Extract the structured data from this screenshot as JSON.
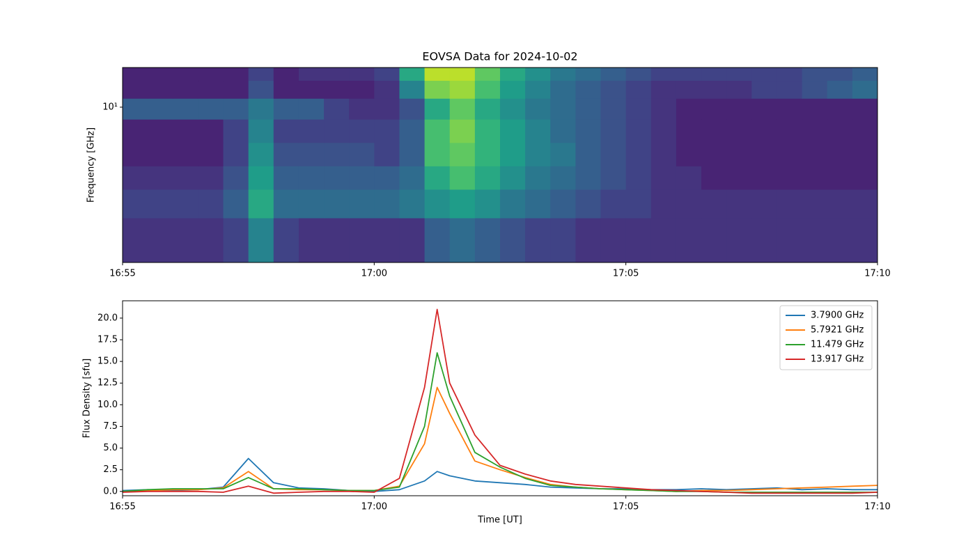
{
  "chart_data": [
    {
      "type": "heatmap",
      "title": "EOVSA Data for 2024-10-02",
      "ylabel": "Frequency [GHz]",
      "colormap": "viridis",
      "x": [
        "16:55:00",
        "16:55:30",
        "16:56:00",
        "16:56:30",
        "16:57:00",
        "16:57:30",
        "16:58:00",
        "16:58:30",
        "16:59:00",
        "16:59:30",
        "17:00:00",
        "17:00:30",
        "17:01:00",
        "17:01:30",
        "17:02:00",
        "17:02:30",
        "17:03:00",
        "17:03:30",
        "17:04:00",
        "17:04:30",
        "17:05:00",
        "17:05:30",
        "17:06:00",
        "17:06:30",
        "17:07:00",
        "17:07:30",
        "17:08:00",
        "17:08:30",
        "17:09:00",
        "17:09:30",
        "17:10:00"
      ],
      "frequencies": [
        1.5,
        2.5,
        3.5,
        5,
        7,
        10,
        13,
        17
      ],
      "z": [
        [
          0.15,
          0.15,
          0.15,
          0.15,
          0.2,
          0.45,
          0.2,
          0.15,
          0.15,
          0.15,
          0.15,
          0.15,
          0.3,
          0.35,
          0.3,
          0.25,
          0.2,
          0.2,
          0.15,
          0.15,
          0.15,
          0.15,
          0.15,
          0.15,
          0.15,
          0.15,
          0.15,
          0.15,
          0.15,
          0.15
        ],
        [
          0.2,
          0.2,
          0.2,
          0.2,
          0.3,
          0.6,
          0.35,
          0.35,
          0.35,
          0.35,
          0.35,
          0.4,
          0.5,
          0.55,
          0.5,
          0.4,
          0.35,
          0.3,
          0.25,
          0.2,
          0.2,
          0.15,
          0.15,
          0.15,
          0.15,
          0.15,
          0.15,
          0.15,
          0.15,
          0.15
        ],
        [
          0.15,
          0.15,
          0.15,
          0.15,
          0.25,
          0.55,
          0.3,
          0.3,
          0.3,
          0.3,
          0.3,
          0.35,
          0.6,
          0.7,
          0.6,
          0.5,
          0.4,
          0.35,
          0.3,
          0.25,
          0.2,
          0.15,
          0.15,
          0.1,
          0.1,
          0.1,
          0.1,
          0.1,
          0.1,
          0.1
        ],
        [
          0.1,
          0.1,
          0.1,
          0.1,
          0.2,
          0.5,
          0.25,
          0.25,
          0.25,
          0.25,
          0.2,
          0.3,
          0.7,
          0.75,
          0.65,
          0.55,
          0.45,
          0.4,
          0.3,
          0.25,
          0.2,
          0.15,
          0.1,
          0.1,
          0.1,
          0.1,
          0.1,
          0.1,
          0.1,
          0.1
        ],
        [
          0.1,
          0.1,
          0.1,
          0.1,
          0.2,
          0.45,
          0.2,
          0.2,
          0.2,
          0.2,
          0.2,
          0.3,
          0.7,
          0.8,
          0.65,
          0.55,
          0.45,
          0.35,
          0.3,
          0.25,
          0.2,
          0.15,
          0.1,
          0.1,
          0.1,
          0.1,
          0.1,
          0.1,
          0.1,
          0.1
        ],
        [
          0.3,
          0.3,
          0.3,
          0.3,
          0.3,
          0.4,
          0.3,
          0.3,
          0.2,
          0.15,
          0.15,
          0.25,
          0.6,
          0.75,
          0.6,
          0.5,
          0.4,
          0.35,
          0.3,
          0.25,
          0.2,
          0.15,
          0.1,
          0.1,
          0.1,
          0.1,
          0.1,
          0.1,
          0.1,
          0.1
        ],
        [
          0.1,
          0.1,
          0.1,
          0.1,
          0.1,
          0.25,
          0.1,
          0.1,
          0.1,
          0.1,
          0.15,
          0.45,
          0.8,
          0.85,
          0.7,
          0.55,
          0.45,
          0.35,
          0.3,
          0.25,
          0.2,
          0.15,
          0.15,
          0.15,
          0.15,
          0.2,
          0.2,
          0.25,
          0.3,
          0.35
        ],
        [
          0.1,
          0.1,
          0.1,
          0.1,
          0.1,
          0.2,
          0.1,
          0.15,
          0.15,
          0.15,
          0.2,
          0.6,
          0.9,
          0.9,
          0.75,
          0.6,
          0.5,
          0.4,
          0.35,
          0.3,
          0.25,
          0.2,
          0.2,
          0.2,
          0.2,
          0.2,
          0.2,
          0.25,
          0.25,
          0.3
        ]
      ],
      "xlim": [
        "16:55",
        "17:10"
      ],
      "xticks": [
        "16:55",
        "17:00",
        "17:05",
        "17:10"
      ],
      "ylim": [
        1,
        18
      ],
      "yticks": [
        {
          "value": 10,
          "label": "10¹"
        }
      ],
      "log_y": true
    },
    {
      "type": "line",
      "ylabel": "Flux Density [sfu]",
      "xlabel": "Time [UT]",
      "legend": "upper right",
      "x": [
        "16:55:00",
        "16:55:30",
        "16:56:00",
        "16:56:30",
        "16:57:00",
        "16:57:30",
        "16:58:00",
        "16:58:30",
        "16:59:00",
        "16:59:30",
        "17:00:00",
        "17:00:30",
        "17:01:00",
        "17:01:15",
        "17:01:30",
        "17:02:00",
        "17:02:30",
        "17:03:00",
        "17:03:30",
        "17:04:00",
        "17:04:30",
        "17:05:00",
        "17:05:30",
        "17:06:00",
        "17:06:30",
        "17:07:00",
        "17:07:30",
        "17:08:00",
        "17:08:30",
        "17:09:00",
        "17:09:30",
        "17:10:00"
      ],
      "series": [
        {
          "name": "3.7900 GHz",
          "color": "#1f77b4",
          "values": [
            0.1,
            0.2,
            0.1,
            0.2,
            0.5,
            3.8,
            1.0,
            0.4,
            0.3,
            0.1,
            0.0,
            0.2,
            1.2,
            2.3,
            1.8,
            1.2,
            1.0,
            0.8,
            0.5,
            0.4,
            0.3,
            0.3,
            0.2,
            0.2,
            0.3,
            0.2,
            0.3,
            0.4,
            0.2,
            0.3,
            0.2,
            0.2
          ]
        },
        {
          "name": "5.7921 GHz",
          "color": "#ff7f0e",
          "values": [
            0.0,
            0.1,
            0.2,
            0.2,
            0.4,
            2.3,
            0.3,
            0.2,
            0.2,
            0.1,
            0.1,
            0.6,
            5.5,
            12.0,
            9.0,
            3.5,
            2.5,
            1.6,
            0.8,
            0.5,
            0.3,
            0.2,
            0.1,
            0.0,
            0.1,
            0.1,
            0.2,
            0.3,
            0.4,
            0.5,
            0.6,
            0.7
          ]
        },
        {
          "name": "11.479 GHz",
          "color": "#2ca02c",
          "values": [
            0.0,
            0.2,
            0.3,
            0.3,
            0.3,
            1.6,
            0.3,
            0.3,
            0.2,
            0.1,
            0.1,
            0.5,
            7.5,
            16.0,
            11.0,
            4.5,
            2.8,
            1.5,
            0.7,
            0.5,
            0.3,
            0.2,
            0.1,
            0.0,
            0.0,
            -0.1,
            -0.1,
            -0.1,
            -0.1,
            -0.1,
            -0.1,
            -0.1
          ]
        },
        {
          "name": "13.917 GHz",
          "color": "#d62728",
          "values": [
            -0.1,
            0.0,
            0.0,
            0.0,
            -0.1,
            0.6,
            -0.2,
            -0.1,
            0.0,
            0.0,
            -0.1,
            1.5,
            12.0,
            21.0,
            12.5,
            6.5,
            3.0,
            2.0,
            1.2,
            0.8,
            0.6,
            0.4,
            0.2,
            0.1,
            0.0,
            -0.1,
            -0.2,
            -0.2,
            -0.2,
            -0.2,
            -0.2,
            -0.1
          ]
        }
      ],
      "xlim": [
        "16:55",
        "17:10"
      ],
      "xticks": [
        "16:55",
        "17:00",
        "17:05",
        "17:10"
      ],
      "ylim": [
        -0.5,
        22
      ],
      "yticks": [
        {
          "value": 0,
          "label": "0.0"
        },
        2.5,
        {
          "value": 5,
          "label": "5.0"
        },
        7.5,
        {
          "value": 10,
          "label": "10.0"
        },
        12.5,
        {
          "value": 15,
          "label": "15.0"
        },
        17.5,
        {
          "value": 20,
          "label": "20.0"
        }
      ]
    }
  ]
}
